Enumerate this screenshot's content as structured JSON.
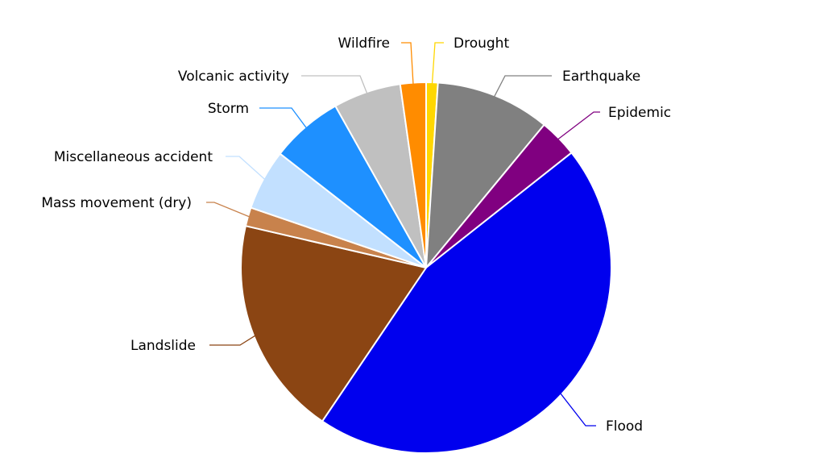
{
  "chart_data": {
    "type": "pie",
    "title": "",
    "slices": [
      {
        "label": "Drought",
        "value": 1.0,
        "color": "#FFD700"
      },
      {
        "label": "Earthquake",
        "value": 9.8,
        "color": "#808080"
      },
      {
        "label": "Epidemic",
        "value": 3.3,
        "color": "#800080"
      },
      {
        "label": "Flood",
        "value": 44.3,
        "color": "#0000EE"
      },
      {
        "label": "Landslide",
        "value": 18.8,
        "color": "#8B4513"
      },
      {
        "label": "Mass movement (dry)",
        "value": 1.6,
        "color": "#C8824C"
      },
      {
        "label": "Miscellaneous accident",
        "value": 5.2,
        "color": "#C2E0FF"
      },
      {
        "label": "Storm",
        "value": 6.2,
        "color": "#1E90FF"
      },
      {
        "label": "Volcanic activity",
        "value": 5.8,
        "color": "#C0C0C0"
      },
      {
        "label": "Wildfire",
        "value": 2.2,
        "color": "#FF8C00"
      }
    ],
    "start_angle": "12 o'clock",
    "direction": "clockwise",
    "legend": "none (labels with leader lines)"
  }
}
